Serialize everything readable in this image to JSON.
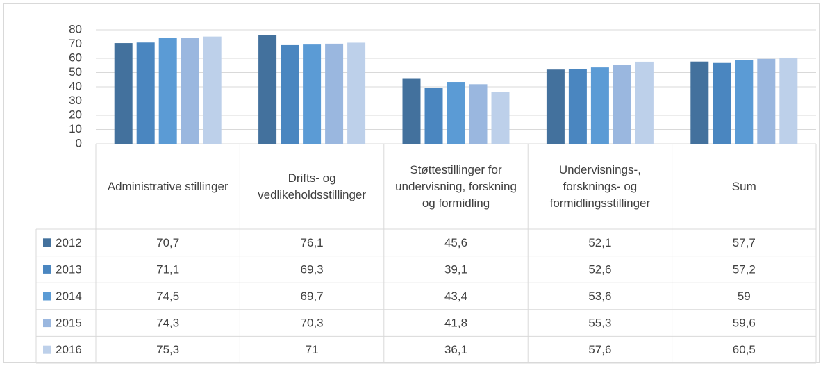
{
  "chart_data": {
    "type": "bar",
    "categories": [
      "Administrative stillinger",
      "Drifts- og vedlikeholdsstillinger",
      "Støttestillinger for undervisning, forskning og formidling",
      "Undervisnings-, forsknings- og formidlingsstillinger",
      "Sum"
    ],
    "series": [
      {
        "name": "2012",
        "color": "#43719d",
        "values": [
          70.7,
          76.1,
          45.6,
          52.1,
          57.7
        ],
        "value_labels": [
          "70,7",
          "76,1",
          "45,6",
          "52,1",
          "57,7"
        ]
      },
      {
        "name": "2013",
        "color": "#4a86c0",
        "values": [
          71.1,
          69.3,
          39.1,
          52.6,
          57.2
        ],
        "value_labels": [
          "71,1",
          "69,3",
          "39,1",
          "52,6",
          "57,2"
        ]
      },
      {
        "name": "2014",
        "color": "#5b9bd5",
        "values": [
          74.5,
          69.7,
          43.4,
          53.6,
          59
        ],
        "value_labels": [
          "74,5",
          "69,7",
          "43,4",
          "53,6",
          "59"
        ]
      },
      {
        "name": "2015",
        "color": "#9ab7df",
        "values": [
          74.3,
          70.3,
          41.8,
          55.3,
          59.6
        ],
        "value_labels": [
          "74,3",
          "70,3",
          "41,8",
          "55,3",
          "59,6"
        ]
      },
      {
        "name": "2016",
        "color": "#bdd0ea",
        "values": [
          75.3,
          71,
          36.1,
          57.6,
          60.5
        ],
        "value_labels": [
          "75,3",
          "71",
          "36,1",
          "57,6",
          "60,5"
        ]
      }
    ],
    "ylim": [
      0,
      80
    ],
    "yticks": [
      0,
      10,
      20,
      30,
      40,
      50,
      60,
      70,
      80
    ],
    "grid": true
  }
}
